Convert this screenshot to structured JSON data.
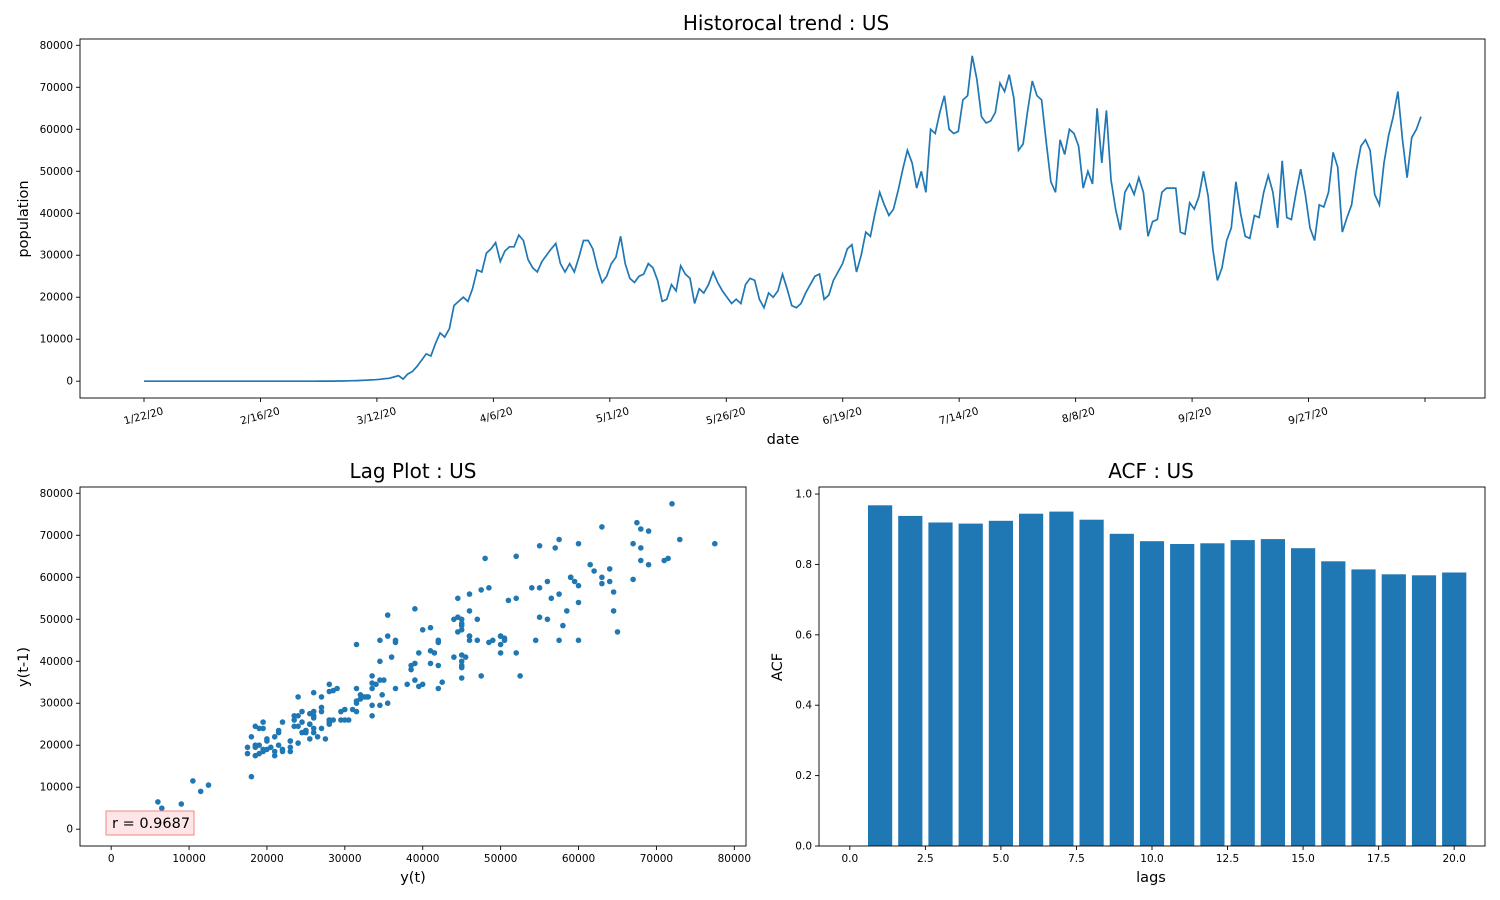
{
  "chart_data": [
    {
      "type": "line",
      "title": "Historocal trend : US",
      "xlabel": "date",
      "ylabel": "population",
      "ylim": [
        -4000,
        81500
      ],
      "x_tick_labels": [
        "1/22/20",
        "2/16/20",
        "3/12/20",
        "4/6/20",
        "5/1/20",
        "5/26/20",
        "6/19/20",
        "7/14/20",
        "8/8/20",
        "9/2/20",
        "9/27/20"
      ],
      "y_ticks": [
        0,
        10000,
        20000,
        30000,
        40000,
        50000,
        60000,
        70000,
        80000
      ],
      "grid": false,
      "color": "#1f77b4",
      "series": [
        {
          "x_start": "1/22/20",
          "values": [
            0,
            1,
            0,
            0,
            1,
            2,
            0,
            2,
            1,
            0,
            0,
            0,
            0,
            0,
            1,
            0,
            0,
            0,
            0,
            0,
            0,
            0,
            1,
            0,
            0,
            0,
            0,
            0,
            0,
            0,
            0,
            1,
            2,
            0,
            3,
            5,
            7,
            10,
            18,
            15,
            25,
            30,
            40,
            60,
            90,
            120,
            150,
            200,
            250,
            300,
            350,
            450,
            600,
            700,
            1000,
            1300,
            500,
            1700,
            2300,
            3500,
            5000,
            6500,
            6000,
            9000,
            11500,
            10500,
            12500,
            18000,
            19000,
            20000,
            19000,
            22000,
            26500,
            26000,
            30500,
            31500,
            33000,
            28500,
            31000,
            32000,
            32000,
            34800,
            33500,
            29000,
            27000,
            26000,
            28500,
            30000,
            31500,
            32800,
            28000,
            26000,
            28000,
            26000,
            29500,
            33500,
            33500,
            31500,
            27000,
            23500,
            25000,
            28000,
            29500,
            34500,
            28000,
            24500,
            23500,
            25000,
            25500,
            28000,
            27000,
            24000,
            19000,
            19500,
            23000,
            21500,
            27500,
            25500,
            24500,
            18500,
            22000,
            21000,
            23000,
            26000,
            23500,
            21500,
            20000,
            18500,
            19500,
            18500,
            23000,
            24500,
            24000,
            19500,
            17500,
            21000,
            20000,
            21500,
            25500,
            22000,
            18000,
            17500,
            18500,
            21000,
            23000,
            25000,
            25500,
            19500,
            20500,
            24000,
            26000,
            28000,
            31500,
            32500,
            26000,
            30000,
            35500,
            34500,
            40000,
            45000,
            42000,
            39500,
            41000,
            45500,
            50500,
            55000,
            52000,
            46000,
            50000,
            45000,
            60000,
            59000,
            64000,
            68000,
            60000,
            59000,
            59500,
            67000,
            68000,
            77500,
            72000,
            63000,
            61500,
            62000,
            64000,
            71000,
            69000,
            73000,
            67500,
            55000,
            56500,
            64500,
            71500,
            68000,
            67000,
            57000,
            47500,
            45000,
            57500,
            54000,
            60000,
            59000,
            56000,
            46000,
            50000,
            47000,
            65000,
            52000,
            64500,
            48000,
            41000,
            36000,
            45000,
            47000,
            44500,
            48500,
            45000,
            34500,
            38000,
            38500,
            45000,
            46000,
            46000,
            46000,
            35500,
            35000,
            42500,
            41000,
            44000,
            50000,
            44000,
            31500,
            24000,
            27000,
            33500,
            36500,
            47500,
            40000,
            34500,
            34000,
            39500,
            39000,
            45000,
            49000,
            45000,
            36500,
            52500,
            39000,
            38500,
            45000,
            50500,
            44500,
            36500,
            33500,
            42000,
            41500,
            45000,
            54500,
            51000,
            35500,
            39000,
            42000,
            50000,
            56000,
            57500,
            55000,
            44500,
            42000,
            52000,
            58500,
            63000,
            69000,
            57500,
            48500,
            58000,
            60000,
            63000
          ]
        }
      ]
    },
    {
      "type": "scatter",
      "title": "Lag Plot : US",
      "xlabel": "y(t)",
      "ylabel": "y(t-1)",
      "xlim": [
        -4000,
        81500
      ],
      "ylim": [
        -4000,
        81500
      ],
      "x_ticks": [
        0,
        10000,
        20000,
        30000,
        40000,
        50000,
        60000,
        70000,
        80000
      ],
      "y_ticks": [
        0,
        10000,
        20000,
        30000,
        40000,
        50000,
        60000,
        70000,
        80000
      ],
      "annotation": "r = 0.9687",
      "color": "#1f77b4",
      "derived_from": "lag-1 pairs of the trend series"
    },
    {
      "type": "bar",
      "title": "ACF : US",
      "xlabel": "lags",
      "ylabel": "ACF",
      "xlim": [
        -1.02,
        21.02
      ],
      "ylim": [
        0,
        1.02
      ],
      "x_ticks": [
        "0.0",
        "2.5",
        "5.0",
        "7.5",
        "10.0",
        "12.5",
        "15.0",
        "17.5",
        "20.0"
      ],
      "y_ticks": [
        "0.0",
        "0.2",
        "0.4",
        "0.6",
        "0.8",
        "1.0"
      ],
      "categories": [
        1,
        2,
        3,
        4,
        5,
        6,
        7,
        8,
        9,
        10,
        11,
        12,
        13,
        14,
        15,
        16,
        17,
        18,
        19,
        20
      ],
      "values": [
        0.968,
        0.938,
        0.919,
        0.916,
        0.924,
        0.944,
        0.95,
        0.927,
        0.887,
        0.866,
        0.858,
        0.86,
        0.869,
        0.872,
        0.846,
        0.809,
        0.786,
        0.772,
        0.769,
        0.777
      ],
      "color": "#1f77b4"
    }
  ]
}
